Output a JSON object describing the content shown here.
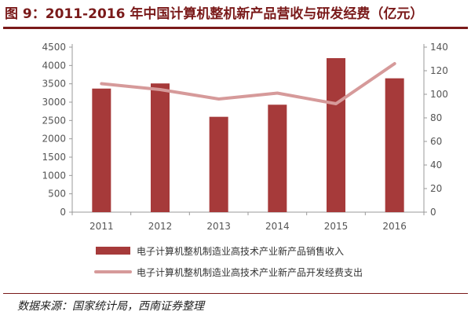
{
  "title": "图 9：2011-2016 年中国计算机整机新产品营收与研发经费（亿元）",
  "source": "数据来源：国家统计局，西南证券整理",
  "chart_data": {
    "type": "bar",
    "categories": [
      "2011",
      "2012",
      "2013",
      "2014",
      "2015",
      "2016"
    ],
    "series": [
      {
        "name": "电子计算机整机制造业高技术产业新产品销售收入",
        "type": "bar",
        "axis": "left",
        "color": "#a63a3a",
        "values": [
          3370,
          3510,
          2600,
          2930,
          4200,
          3650
        ]
      },
      {
        "name": "电子计算机整机制造业高技术产业新产品开发经费支出",
        "type": "line",
        "axis": "right",
        "color": "#d69a9a",
        "values": [
          109,
          104,
          96,
          101,
          92,
          126
        ]
      }
    ],
    "y_left": {
      "min": 0,
      "max": 4500,
      "ticks": [
        "0",
        "500",
        "1000",
        "1500",
        "2000",
        "2500",
        "3000",
        "3500",
        "4000",
        "4500"
      ]
    },
    "y_right": {
      "min": 0,
      "max": 140,
      "ticks": [
        "0",
        "20",
        "40",
        "60",
        "80",
        "100",
        "120",
        "140"
      ]
    },
    "legend_position": "bottom",
    "grid": false
  }
}
